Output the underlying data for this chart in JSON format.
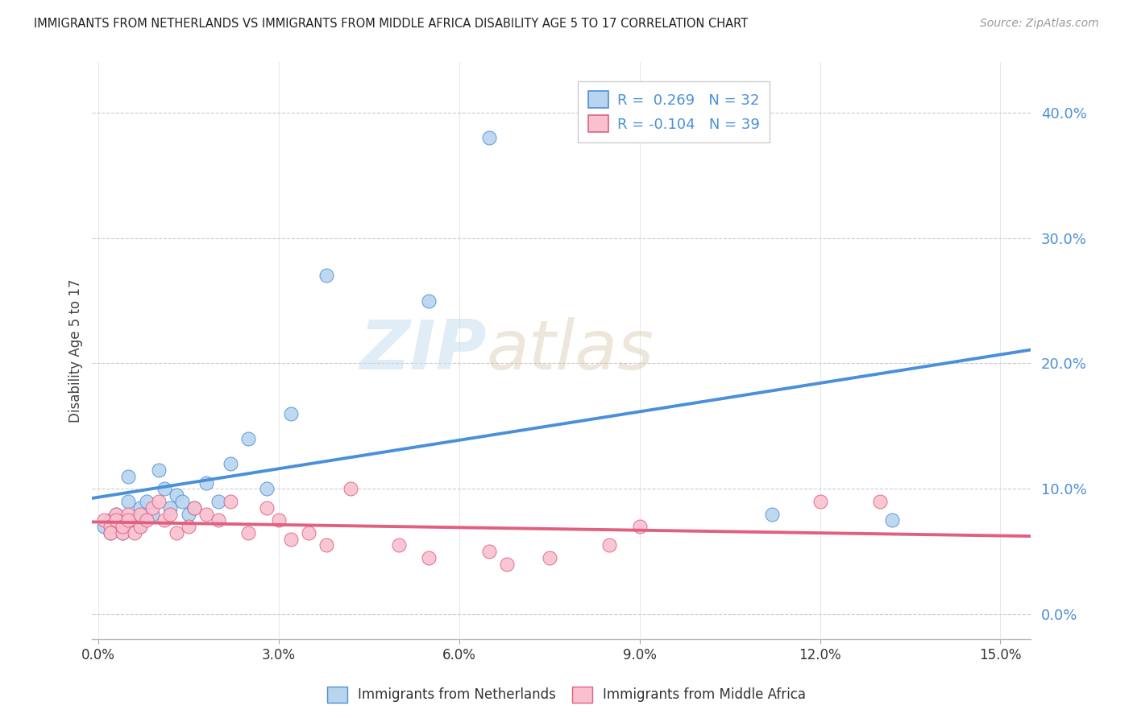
{
  "title": "IMMIGRANTS FROM NETHERLANDS VS IMMIGRANTS FROM MIDDLE AFRICA DISABILITY AGE 5 TO 17 CORRELATION CHART",
  "source": "Source: ZipAtlas.com",
  "ylabel": "Disability Age 5 to 17",
  "ytick_values": [
    0.0,
    0.1,
    0.2,
    0.3,
    0.4
  ],
  "xtick_values": [
    0.0,
    0.03,
    0.06,
    0.09,
    0.12,
    0.15
  ],
  "xlim": [
    -0.001,
    0.155
  ],
  "ylim": [
    -0.02,
    0.44
  ],
  "r_netherlands": 0.269,
  "n_netherlands": 32,
  "r_middle_africa": -0.104,
  "n_middle_africa": 39,
  "color_netherlands": "#b8d4ee",
  "color_netherlands_line": "#4a90d9",
  "color_middle_africa": "#f9c0d0",
  "color_middle_africa_line": "#e06080",
  "watermark_zip": "ZIP",
  "watermark_atlas": "atlas",
  "netherlands_x": [
    0.001,
    0.002,
    0.002,
    0.003,
    0.003,
    0.004,
    0.004,
    0.005,
    0.005,
    0.006,
    0.007,
    0.007,
    0.008,
    0.009,
    0.01,
    0.011,
    0.012,
    0.013,
    0.014,
    0.015,
    0.016,
    0.018,
    0.02,
    0.022,
    0.025,
    0.028,
    0.032,
    0.038,
    0.055,
    0.065,
    0.112,
    0.132
  ],
  "netherlands_y": [
    0.07,
    0.075,
    0.065,
    0.08,
    0.07,
    0.065,
    0.075,
    0.09,
    0.11,
    0.075,
    0.085,
    0.07,
    0.09,
    0.08,
    0.115,
    0.1,
    0.085,
    0.095,
    0.09,
    0.08,
    0.085,
    0.105,
    0.09,
    0.12,
    0.14,
    0.1,
    0.16,
    0.27,
    0.25,
    0.38,
    0.08,
    0.075
  ],
  "middle_africa_x": [
    0.001,
    0.002,
    0.002,
    0.003,
    0.003,
    0.004,
    0.004,
    0.005,
    0.005,
    0.006,
    0.007,
    0.007,
    0.008,
    0.009,
    0.01,
    0.011,
    0.012,
    0.013,
    0.015,
    0.016,
    0.018,
    0.02,
    0.022,
    0.025,
    0.028,
    0.03,
    0.032,
    0.035,
    0.038,
    0.042,
    0.05,
    0.055,
    0.065,
    0.068,
    0.075,
    0.085,
    0.09,
    0.12,
    0.13
  ],
  "middle_africa_y": [
    0.075,
    0.07,
    0.065,
    0.08,
    0.075,
    0.065,
    0.07,
    0.08,
    0.075,
    0.065,
    0.07,
    0.08,
    0.075,
    0.085,
    0.09,
    0.075,
    0.08,
    0.065,
    0.07,
    0.085,
    0.08,
    0.075,
    0.09,
    0.065,
    0.085,
    0.075,
    0.06,
    0.065,
    0.055,
    0.1,
    0.055,
    0.045,
    0.05,
    0.04,
    0.045,
    0.055,
    0.07,
    0.09,
    0.09
  ],
  "legend_label_netherlands": "Immigrants from Netherlands",
  "legend_label_middle_africa": "Immigrants from Middle Africa"
}
